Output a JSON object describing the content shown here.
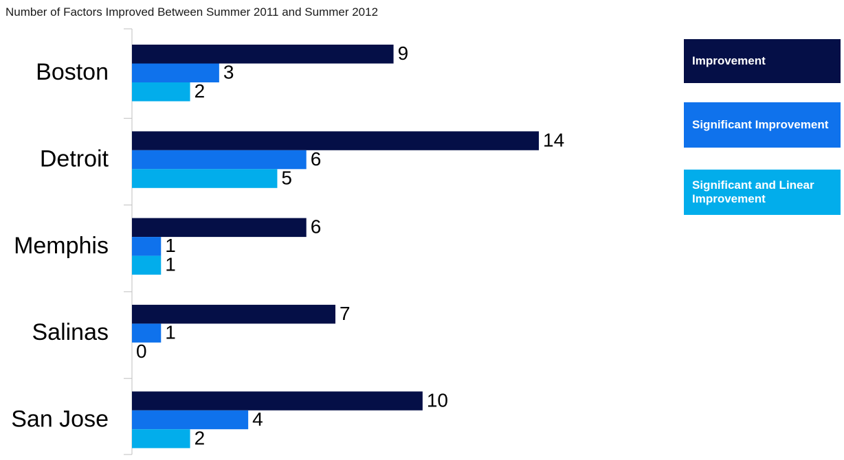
{
  "chart_data": {
    "type": "bar",
    "orientation": "horizontal",
    "title": "Number of Factors Improved Between Summer 2011 and Summer 2012",
    "categories": [
      "Boston",
      "Detroit",
      "Memphis",
      "Salinas",
      "San Jose"
    ],
    "series": [
      {
        "name": "Improvement",
        "values": [
          9,
          14,
          6,
          7,
          10
        ],
        "color": "#050f47"
      },
      {
        "name": "Significant Improvement",
        "values": [
          3,
          6,
          1,
          1,
          4
        ],
        "color": "#0f72ec"
      },
      {
        "name": "Significant and Linear Improvement",
        "values": [
          2,
          5,
          1,
          0,
          2
        ],
        "color": "#02adeb"
      }
    ],
    "xlim": [
      0,
      14
    ],
    "grid": false,
    "legend_position": "right"
  }
}
